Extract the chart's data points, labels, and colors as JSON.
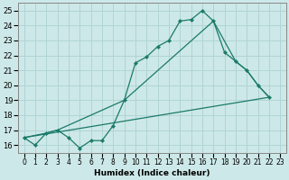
{
  "xlabel": "Humidex (Indice chaleur)",
  "bg_color": "#cde8e8",
  "line_color": "#1a7a6a",
  "grid_color": "#b0d4d4",
  "xlim": [
    -0.5,
    23.5
  ],
  "ylim": [
    15.5,
    25.5
  ],
  "xticks": [
    0,
    1,
    2,
    3,
    4,
    5,
    6,
    7,
    8,
    9,
    10,
    11,
    12,
    13,
    14,
    15,
    16,
    17,
    18,
    19,
    20,
    21,
    22,
    23
  ],
  "yticks": [
    16,
    17,
    18,
    19,
    20,
    21,
    22,
    23,
    24,
    25
  ],
  "line1_x": [
    0,
    1,
    2,
    3,
    4,
    5,
    6,
    7,
    8,
    9,
    10,
    11,
    12,
    13,
    14,
    15,
    16,
    17,
    18,
    19,
    20,
    21,
    22
  ],
  "line1_y": [
    16.5,
    16.0,
    16.8,
    17.0,
    16.5,
    15.8,
    16.3,
    16.3,
    17.3,
    19.0,
    21.5,
    21.9,
    22.6,
    23.0,
    24.3,
    24.4,
    25.0,
    24.3,
    22.2,
    21.6,
    21.0,
    20.0,
    19.2
  ],
  "line2_x": [
    0,
    2,
    3,
    9,
    17,
    19,
    20,
    21,
    22
  ],
  "line2_y": [
    16.5,
    16.8,
    17.0,
    19.0,
    24.3,
    21.6,
    21.0,
    20.0,
    19.2
  ],
  "line3_x": [
    0,
    22
  ],
  "line3_y": [
    16.5,
    19.2
  ]
}
